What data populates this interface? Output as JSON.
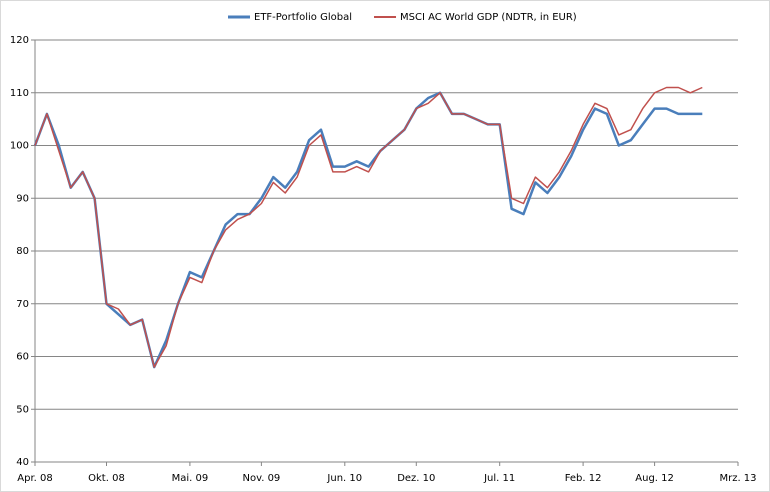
{
  "chart_data": {
    "type": "line",
    "x": [
      "2008-04",
      "2008-05",
      "2008-06",
      "2008-07",
      "2008-08",
      "2008-09",
      "2008-10",
      "2008-11",
      "2008-12",
      "2009-01",
      "2009-02",
      "2009-03",
      "2009-04",
      "2009-05",
      "2009-06",
      "2009-07",
      "2009-08",
      "2009-09",
      "2009-10",
      "2009-11",
      "2009-12",
      "2010-01",
      "2010-02",
      "2010-03",
      "2010-04",
      "2010-05",
      "2010-06",
      "2010-07",
      "2010-08",
      "2010-09",
      "2010-10",
      "2010-11",
      "2010-12",
      "2011-01",
      "2011-02",
      "2011-03",
      "2011-04",
      "2011-05",
      "2011-06",
      "2011-07",
      "2011-08",
      "2011-09",
      "2011-10",
      "2011-11",
      "2011-12",
      "2012-01",
      "2012-02",
      "2012-03",
      "2012-04",
      "2012-05",
      "2012-06",
      "2012-07",
      "2012-08",
      "2012-09",
      "2012-10",
      "2012-11",
      "2012-12"
    ],
    "series": [
      {
        "name": "ETF-Portfolio Global",
        "color": "#4a7ebb",
        "values": [
          100,
          106,
          100,
          92,
          95,
          90,
          70,
          68,
          66,
          67,
          58,
          63,
          70,
          76,
          75,
          80,
          85,
          87,
          87,
          90,
          94,
          92,
          95,
          101,
          103,
          96,
          96,
          97,
          96,
          99,
          101,
          103,
          107,
          109,
          110,
          106,
          106,
          105,
          104,
          104,
          88,
          87,
          93,
          91,
          94,
          98,
          103,
          107,
          106,
          100,
          101,
          104,
          107,
          107,
          106,
          106,
          106
        ]
      },
      {
        "name": "MSCI AC World GDP (NDTR,  in EUR)",
        "color": "#c0504d",
        "values": [
          100,
          106,
          99,
          92,
          95,
          90,
          70,
          69,
          66,
          67,
          58,
          62,
          70,
          75,
          74,
          80,
          84,
          86,
          87,
          89,
          93,
          91,
          94,
          100,
          102,
          95,
          95,
          96,
          95,
          99,
          101,
          103,
          107,
          108,
          110,
          106,
          106,
          105,
          104,
          104,
          90,
          89,
          94,
          92,
          95,
          99,
          104,
          108,
          107,
          102,
          103,
          107,
          110,
          111,
          111,
          110,
          111
        ]
      }
    ],
    "xlim": [
      "2008-04",
      "2013-03"
    ],
    "xticks": [
      {
        "value": "2008-04",
        "label": "Apr. 08"
      },
      {
        "value": "2008-10",
        "label": "Okt. 08"
      },
      {
        "value": "2009-05",
        "label": "Mai. 09"
      },
      {
        "value": "2009-11",
        "label": "Nov. 09"
      },
      {
        "value": "2010-06",
        "label": "Jun. 10"
      },
      {
        "value": "2010-12",
        "label": "Dez. 10"
      },
      {
        "value": "2011-07",
        "label": "Jul. 11"
      },
      {
        "value": "2012-02",
        "label": "Feb. 12"
      },
      {
        "value": "2012-08",
        "label": "Aug. 12"
      },
      {
        "value": "2013-03",
        "label": "Mrz. 13"
      }
    ],
    "ylim": [
      40,
      120
    ],
    "yticks": [
      40,
      50,
      60,
      70,
      80,
      90,
      100,
      110,
      120
    ],
    "grid": true,
    "legend": "top"
  }
}
